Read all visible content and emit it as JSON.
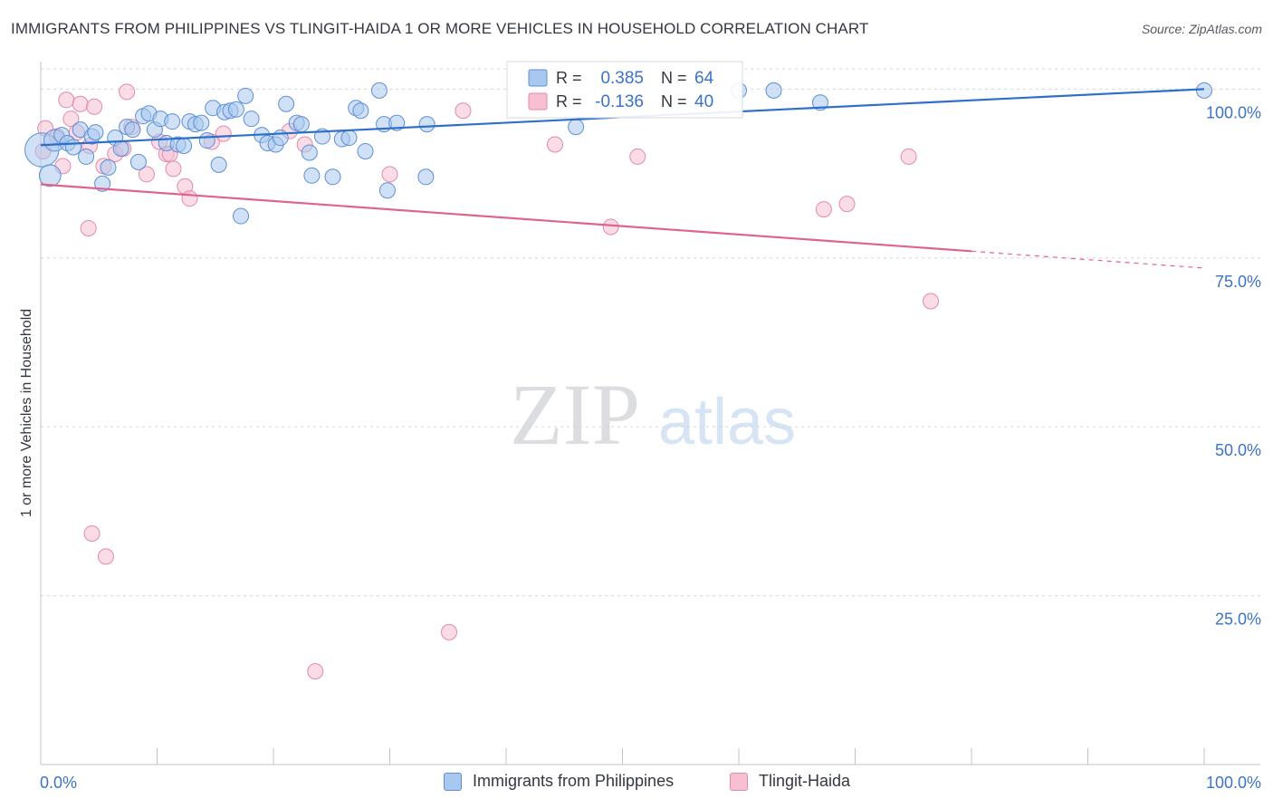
{
  "header": {
    "title": "IMMIGRANTS FROM PHILIPPINES VS TLINGIT-HAIDA 1 OR MORE VEHICLES IN HOUSEHOLD CORRELATION CHART",
    "source": "Source: ZipAtlas.com"
  },
  "watermark": {
    "zip": "ZIP",
    "atlas": "atlas"
  },
  "colors": {
    "blue_fill": "#a9c8ef",
    "blue_stroke": "#5c8fd6",
    "blue_line": "#2f6fcb",
    "pink_fill": "#f6bfd2",
    "pink_stroke": "#e389aa",
    "pink_line": "#e2628f",
    "axis_text": "#3b73c8",
    "grid": "#d3d6db"
  },
  "legend": {
    "rows": [
      {
        "r_label": "R =",
        "r_value": "0.385",
        "n_label": "N =",
        "n_value": "64"
      },
      {
        "r_label": "R =",
        "r_value": "-0.136",
        "n_label": "N =",
        "n_value": "40"
      }
    ]
  },
  "bottom_legend": {
    "items": [
      {
        "label": "Immigrants from Philippines"
      },
      {
        "label": "Tlingit-Haida"
      }
    ]
  },
  "chart_data": {
    "type": "scatter",
    "title": "IMMIGRANTS FROM PHILIPPINES VS TLINGIT-HAIDA 1 OR MORE VEHICLES IN HOUSEHOLD CORRELATION CHART",
    "xlabel": "",
    "ylabel": "1 or more Vehicles in Household",
    "xlim": [
      0,
      100
    ],
    "ylim": [
      0,
      103
    ],
    "x_tick_labels": [
      "0.0%",
      "100.0%"
    ],
    "y_ticks": [
      25,
      50,
      75,
      100
    ],
    "y_tick_labels": [
      "25.0%",
      "50.0%",
      "75.0%",
      "100.0%"
    ],
    "grid": true,
    "legend_position": "top-center",
    "series": [
      {
        "name": "Immigrants from Philippines",
        "R": 0.385,
        "N": 64,
        "trend": {
          "x": [
            0,
            100
          ],
          "y": [
            91.7,
            100.0
          ]
        },
        "points": [
          [
            0.1,
            91.0,
            2.2
          ],
          [
            0.8,
            87.2,
            1.4
          ],
          [
            1.2,
            92.4,
            1.4
          ],
          [
            1.8,
            93.2,
            1.0
          ],
          [
            2.3,
            92.0,
            1.0
          ],
          [
            2.8,
            91.4,
            1.0
          ],
          [
            3.4,
            94.0,
            1.0
          ],
          [
            3.9,
            90.0,
            1.0
          ],
          [
            4.4,
            93.0,
            1.0
          ],
          [
            4.7,
            93.6,
            1.0
          ],
          [
            5.3,
            86.0,
            1.0
          ],
          [
            5.8,
            88.4,
            1.0
          ],
          [
            6.4,
            92.8,
            1.0
          ],
          [
            6.9,
            91.2,
            1.0
          ],
          [
            7.4,
            94.4,
            1.0
          ],
          [
            7.9,
            94.0,
            1.0
          ],
          [
            8.4,
            89.2,
            1.0
          ],
          [
            8.8,
            96.0,
            1.0
          ],
          [
            9.3,
            96.4,
            1.0
          ],
          [
            9.8,
            94.0,
            1.0
          ],
          [
            10.3,
            95.6,
            1.0
          ],
          [
            10.8,
            92.0,
            1.0
          ],
          [
            11.3,
            95.2,
            1.0
          ],
          [
            11.8,
            91.8,
            1.0
          ],
          [
            12.3,
            91.6,
            1.0
          ],
          [
            12.8,
            95.2,
            1.0
          ],
          [
            13.3,
            94.8,
            1.0
          ],
          [
            13.8,
            95.0,
            1.0
          ],
          [
            14.3,
            92.4,
            1.0
          ],
          [
            14.8,
            97.2,
            1.0
          ],
          [
            15.3,
            88.8,
            1.0
          ],
          [
            15.8,
            96.6,
            1.0
          ],
          [
            16.3,
            96.8,
            1.0
          ],
          [
            16.8,
            97.0,
            1.0
          ],
          [
            17.6,
            99.0,
            1.0
          ],
          [
            18.1,
            95.6,
            1.0
          ],
          [
            19.0,
            93.2,
            1.0
          ],
          [
            17.2,
            81.2,
            1.0
          ],
          [
            19.5,
            92.0,
            1.0
          ],
          [
            20.2,
            91.8,
            1.0
          ],
          [
            20.6,
            92.8,
            1.0
          ],
          [
            21.1,
            97.8,
            1.0
          ],
          [
            22.0,
            95.0,
            1.0
          ],
          [
            22.4,
            94.8,
            1.0
          ],
          [
            23.1,
            90.6,
            1.0
          ],
          [
            23.3,
            87.2,
            1.0
          ],
          [
            24.2,
            93.0,
            1.0
          ],
          [
            25.1,
            87.0,
            1.0
          ],
          [
            25.9,
            92.6,
            1.0
          ],
          [
            26.5,
            92.8,
            1.0
          ],
          [
            27.1,
            97.2,
            1.0
          ],
          [
            27.5,
            96.8,
            1.0
          ],
          [
            27.9,
            90.8,
            1.0
          ],
          [
            29.1,
            99.8,
            1.0
          ],
          [
            29.5,
            94.8,
            1.0
          ],
          [
            29.8,
            85.0,
            1.0
          ],
          [
            30.6,
            95.0,
            1.0
          ],
          [
            33.2,
            94.8,
            1.0
          ],
          [
            33.1,
            87.0,
            1.0
          ],
          [
            46.0,
            94.4,
            1.0
          ],
          [
            60.0,
            99.8,
            1.0
          ],
          [
            63.0,
            99.8,
            1.0
          ],
          [
            67.0,
            98.0,
            1.0
          ],
          [
            100.0,
            99.8,
            1.0
          ]
        ]
      },
      {
        "name": "Tlingit-Haida",
        "R": -0.136,
        "N": 40,
        "trend": {
          "x": [
            0,
            80,
            100
          ],
          "y": [
            85.9,
            76.0,
            73.5
          ]
        },
        "points": [
          [
            0.4,
            94.2
          ],
          [
            1.4,
            93.0
          ],
          [
            1.9,
            88.6
          ],
          [
            2.2,
            98.4
          ],
          [
            2.6,
            95.6
          ],
          [
            3.1,
            93.6
          ],
          [
            3.4,
            97.8
          ],
          [
            4.1,
            79.4
          ],
          [
            4.6,
            97.4
          ],
          [
            5.4,
            88.6
          ],
          [
            6.4,
            90.4
          ],
          [
            7.1,
            91.2
          ],
          [
            7.4,
            99.6
          ],
          [
            7.8,
            94.4
          ],
          [
            9.1,
            87.4
          ],
          [
            10.2,
            92.2
          ],
          [
            10.8,
            90.4
          ],
          [
            11.1,
            90.4
          ],
          [
            11.4,
            88.2
          ],
          [
            12.4,
            85.6
          ],
          [
            12.8,
            83.8
          ],
          [
            14.7,
            92.2
          ],
          [
            15.7,
            93.4
          ],
          [
            21.4,
            93.8
          ],
          [
            22.7,
            91.8
          ],
          [
            30.0,
            87.4
          ],
          [
            36.3,
            96.8
          ],
          [
            44.2,
            91.8
          ],
          [
            49.0,
            79.6
          ],
          [
            51.3,
            90.0
          ],
          [
            67.3,
            82.2
          ],
          [
            69.3,
            83.0
          ],
          [
            74.6,
            90.0
          ],
          [
            76.5,
            68.6
          ],
          [
            4.4,
            34.2
          ],
          [
            5.6,
            30.8
          ],
          [
            23.6,
            13.8
          ],
          [
            35.1,
            19.6
          ],
          [
            0.2,
            90.8
          ],
          [
            4.2,
            91.6
          ]
        ]
      }
    ]
  }
}
